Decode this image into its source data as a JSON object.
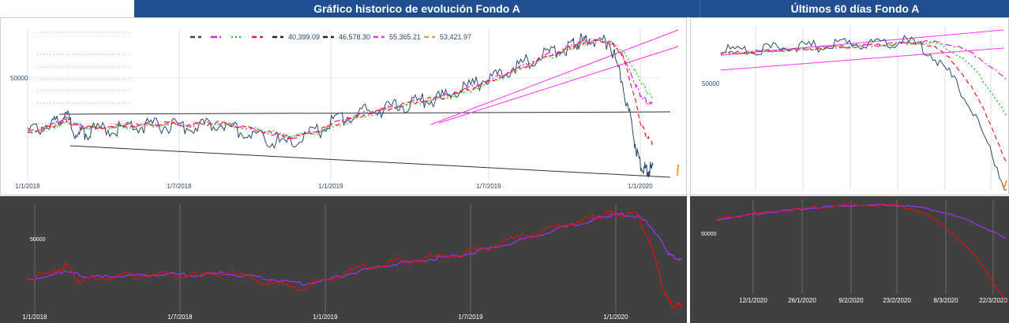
{
  "header": {
    "main_title": "Gráfico historico de evolución Fondo A",
    "side_title": "Últimos 60 días Fondo A"
  },
  "colors": {
    "header_bg": "#1f4f8f",
    "price": "#2b4a6f",
    "ma_magenta": "#e020e0",
    "ma_green": "#22cc22",
    "ma_red": "#ee2222",
    "channel_black": "#222222",
    "channel_magenta": "#ff33ff",
    "dark_bg": "#404040",
    "osc_red": "#dd1111",
    "osc_purple": "#9933ff",
    "orange": "#f0a030"
  },
  "chart_data": [
    {
      "id": "historic",
      "type": "line",
      "x_tick_labels": [
        "1/1/2018",
        "1/7/2018",
        "1/1/2019",
        "1/7/2019",
        "1/1/2020"
      ],
      "y_tick_labels": [
        "50000"
      ],
      "legend": [
        {
          "label": "",
          "color": "#2b4a6f",
          "style": "dash"
        },
        {
          "label": "",
          "color": "#e020e0",
          "style": "dashdot"
        },
        {
          "label": "",
          "color": "#22cc22",
          "style": "dot"
        },
        {
          "label": "",
          "color": "#ee2222",
          "style": "dash"
        },
        {
          "label": "40,399.09",
          "color": "#222222",
          "style": "dash"
        },
        {
          "label": "46,578.30",
          "color": "#222222",
          "style": "dash"
        },
        {
          "label": "55,365.21",
          "color": "#ff33ff",
          "style": "dash"
        },
        {
          "label": "53,421.97",
          "color": "#f0a030",
          "style": "dash"
        },
        {
          "label": "",
          "color": "#ff33ff",
          "style": "dash"
        }
      ],
      "x": [
        0,
        0.04,
        0.06,
        0.08,
        0.1,
        0.14,
        0.18,
        0.22,
        0.26,
        0.3,
        0.34,
        0.38,
        0.42,
        0.46,
        0.5,
        0.54,
        0.58,
        0.62,
        0.66,
        0.7,
        0.74,
        0.78,
        0.82,
        0.86,
        0.88,
        0.9,
        0.93,
        0.95,
        0.97,
        0.98,
        0.99,
        1.0
      ],
      "series": [
        {
          "name": "",
          "values": [
            0.3,
            0.37,
            0.43,
            0.28,
            0.31,
            0.33,
            0.34,
            0.35,
            0.33,
            0.37,
            0.31,
            0.25,
            0.21,
            0.3,
            0.4,
            0.45,
            0.48,
            0.52,
            0.55,
            0.62,
            0.7,
            0.78,
            0.86,
            0.92,
            0.96,
            0.97,
            0.96,
            0.7,
            0.25,
            0.05,
            0.02,
            0.03
          ]
        },
        {
          "name": "",
          "values": [
            0.28,
            0.33,
            0.38,
            0.33,
            0.31,
            0.32,
            0.33,
            0.34,
            0.33,
            0.35,
            0.32,
            0.28,
            0.24,
            0.28,
            0.36,
            0.42,
            0.46,
            0.5,
            0.53,
            0.59,
            0.66,
            0.74,
            0.82,
            0.89,
            0.93,
            0.95,
            0.94,
            0.85,
            0.65,
            0.55,
            0.5,
            0.48
          ]
        },
        {
          "name": "",
          "values": [
            0.27,
            0.31,
            0.35,
            0.33,
            0.31,
            0.31,
            0.32,
            0.33,
            0.33,
            0.34,
            0.32,
            0.29,
            0.25,
            0.27,
            0.33,
            0.4,
            0.45,
            0.49,
            0.52,
            0.57,
            0.64,
            0.72,
            0.8,
            0.87,
            0.91,
            0.94,
            0.94,
            0.88,
            0.74,
            0.65,
            0.58,
            0.52
          ]
        },
        {
          "name": "",
          "values": [
            0.28,
            0.32,
            0.37,
            0.32,
            0.31,
            0.32,
            0.33,
            0.34,
            0.33,
            0.35,
            0.32,
            0.28,
            0.24,
            0.28,
            0.35,
            0.41,
            0.45,
            0.5,
            0.53,
            0.58,
            0.65,
            0.73,
            0.81,
            0.88,
            0.92,
            0.95,
            0.94,
            0.86,
            0.55,
            0.35,
            0.25,
            0.2
          ]
        }
      ]
    },
    {
      "id": "last60",
      "type": "line",
      "y_tick_labels": [
        "50000"
      ]
    },
    {
      "id": "osc_historic",
      "type": "line",
      "x_tick_labels": [
        "1/1/2018",
        "1/7/2018",
        "1/1/2019",
        "1/7/2019",
        "1/1/2020"
      ],
      "y_tick_labels": [
        "50000"
      ]
    },
    {
      "id": "osc_last60",
      "type": "line",
      "x_tick_labels": [
        "12/1/2020",
        "26/1/2020",
        "9/2/2020",
        "23/2/2020",
        "8/3/2020",
        "22/3/2020"
      ],
      "y_tick_labels": [
        "50000"
      ]
    }
  ]
}
